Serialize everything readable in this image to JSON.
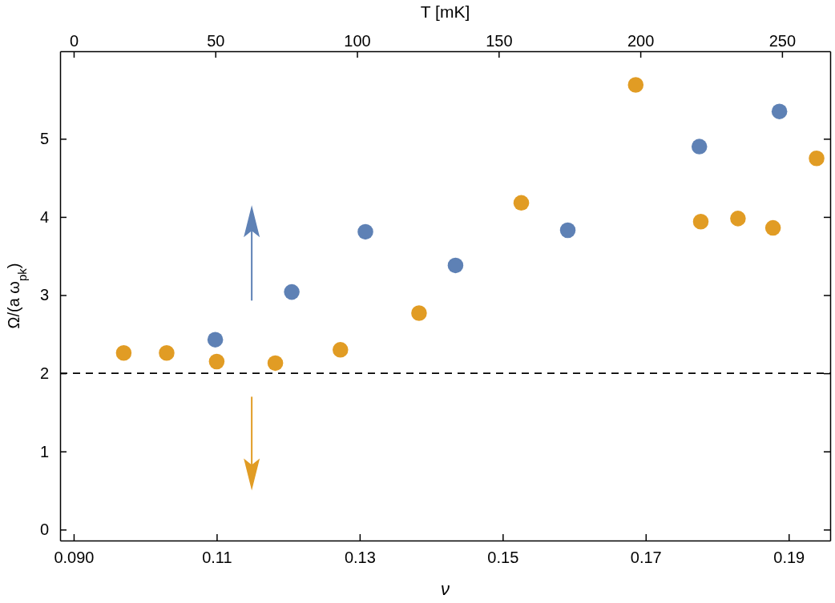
{
  "chart_data": {
    "type": "scatter",
    "xlabel": "ν",
    "ylabel": "Ω/(a ω$_{pk}$)",
    "x2label": "T [mK]",
    "xlim": [
      0.0881,
      0.1958
    ],
    "xticks": [
      {
        "value": 0.09,
        "label": "0.090"
      },
      0.11,
      0.13,
      0.15,
      0.17,
      0.19
    ],
    "x2lim": [
      -4.8,
      267
    ],
    "x2ticks": [
      0,
      50,
      100,
      150,
      200,
      250
    ],
    "ylim": [
      -0.14,
      6.12
    ],
    "yticks": [
      0,
      1,
      2,
      3,
      4,
      5
    ],
    "marker": "circle",
    "grid": false,
    "series": [
      {
        "color": "#e19c24",
        "x": [
          0.097,
          0.103,
          0.11,
          0.1182,
          0.1273,
          0.1383,
          0.1526,
          0.1686,
          0.1777,
          0.1829,
          0.1878,
          0.1939
        ],
        "values": [
          2.26,
          2.26,
          2.15,
          2.13,
          2.3,
          2.77,
          4.18,
          5.69,
          3.94,
          3.98,
          3.86,
          4.75
        ]
      },
      {
        "color": "#5e81b5",
        "x": [
          0.1098,
          0.1205,
          0.1308,
          0.1434,
          0.1591,
          0.1775,
          0.1887
        ],
        "values": [
          2.43,
          3.04,
          3.81,
          3.38,
          3.83,
          4.9,
          5.35
        ]
      }
    ],
    "ref_lines": [
      {
        "axis": "y",
        "value": 2,
        "color": "#000000",
        "line_style": "dashed"
      }
    ]
  }
}
